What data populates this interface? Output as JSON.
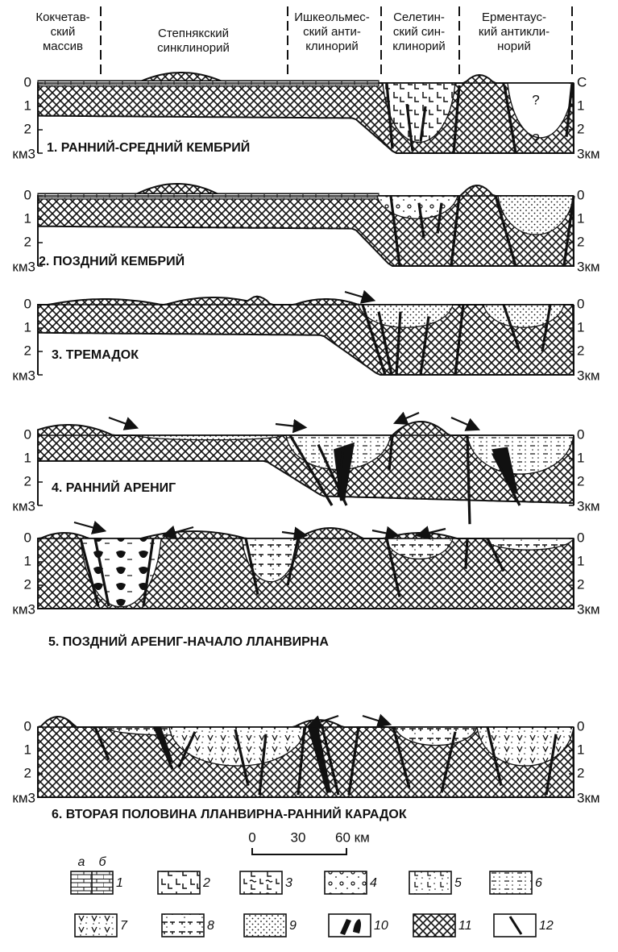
{
  "header": {
    "regions": [
      {
        "lines": [
          "Кокчетав-",
          "ский",
          "массив"
        ]
      },
      {
        "lines": [
          "Степнякский",
          "синклинорий"
        ]
      },
      {
        "lines": [
          "Ишкеольмес-",
          "ский анти-",
          "клинорий"
        ]
      },
      {
        "lines": [
          "Селетин-",
          "ский син-",
          "клинорий"
        ]
      },
      {
        "lines": [
          "Ерментаус-",
          "кий антикли-",
          "норий"
        ]
      }
    ]
  },
  "sections": [
    {
      "title": "1. РАННИЙ-СРЕДНИЙ КЕМБРИЙ",
      "left_axis": [
        "0",
        "1",
        "2",
        "км3"
      ],
      "right_axis": [
        "С",
        "1",
        "2",
        "3км"
      ],
      "annotations": [
        "?",
        "?"
      ]
    },
    {
      "title": "2. ПОЗДНИЙ КЕМБРИЙ",
      "left_axis": [
        "0",
        "1",
        "2",
        "км3"
      ],
      "right_axis": [
        "0",
        "1",
        "2",
        "3км"
      ]
    },
    {
      "title": "3. ТРЕМАДОК",
      "left_axis": [
        "0",
        "1",
        "2",
        "км3"
      ],
      "right_axis": [
        "0",
        "1",
        "2",
        "3км"
      ]
    },
    {
      "title": "4. РАННИЙ АРЕНИГ",
      "left_axis": [
        "0",
        "1",
        "2",
        "км3"
      ],
      "right_axis": [
        "0",
        "1",
        "2",
        "3км"
      ]
    },
    {
      "title": "5. ПОЗДНИЙ АРЕНИГ-НАЧАЛО ЛЛАНВИРНА",
      "left_axis": [
        "0",
        "1",
        "2",
        "км3"
      ],
      "right_axis": [
        "0",
        "1",
        "2",
        "3км"
      ]
    },
    {
      "title": "6. ВТОРАЯ ПОЛОВИНА ЛЛАНВИРНА-РАННИЙ КАРАДОК",
      "left_axis": [
        "0",
        "1",
        "2",
        "км3"
      ],
      "right_axis": [
        "0",
        "1",
        "2",
        "3км"
      ]
    }
  ],
  "scale": {
    "labels": [
      "0",
      "30",
      "60 км"
    ]
  },
  "legend": {
    "sub_labels": [
      "а",
      "б"
    ],
    "items": [
      "1",
      "2",
      "3",
      "4",
      "5",
      "6",
      "7",
      "8",
      "9",
      "10",
      "11",
      "12"
    ]
  }
}
